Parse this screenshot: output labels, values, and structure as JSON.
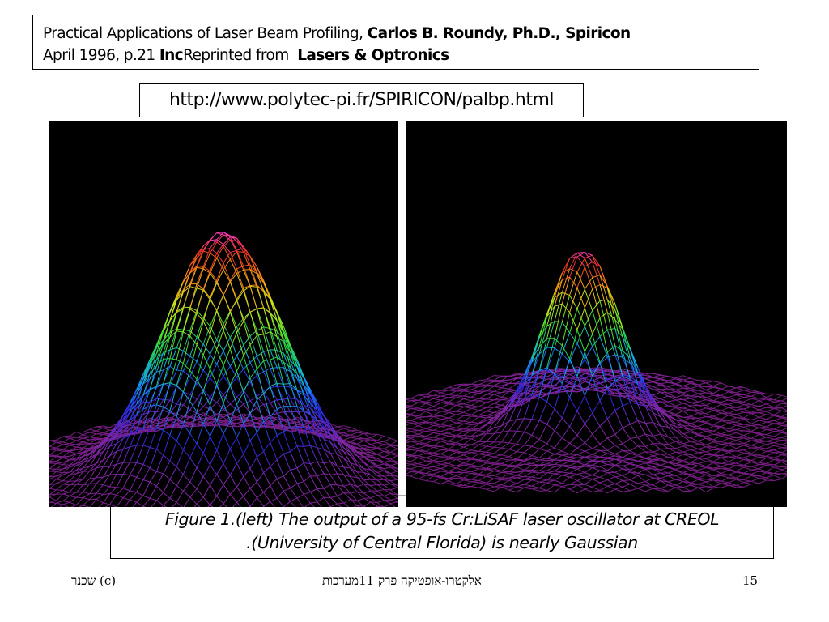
{
  "citation": {
    "line1_prefix": "Practical Applications of Laser Beam Profiling,",
    "author": "Carlos B. Roundy, Ph.D., Spiricon",
    "line2_date": "April 1996, p.21",
    "inc": "Inc",
    "reprinted": "Reprinted from",
    "journal": "Lasers & Optronics"
  },
  "url": "http://www.polytec-pi.fr/SPIRICON/palbp.html",
  "figures": [
    {
      "id": "left",
      "icon": "gaussian-beam-profile-3d"
    },
    {
      "id": "right",
      "icon": "non-gaussian-beam-profile-3d"
    }
  ],
  "caption": {
    "line1": "Figure 1.(left) The output of a 95-fs Cr:LiSAF laser oscillator at CREOL",
    "line2": ".(University of Central Florida) is nearly Gaussian"
  },
  "footer": {
    "copyright": "(c) שכנר",
    "course": "אלקטרו-אופטיקה פרק 11מערכות",
    "page": "15"
  }
}
